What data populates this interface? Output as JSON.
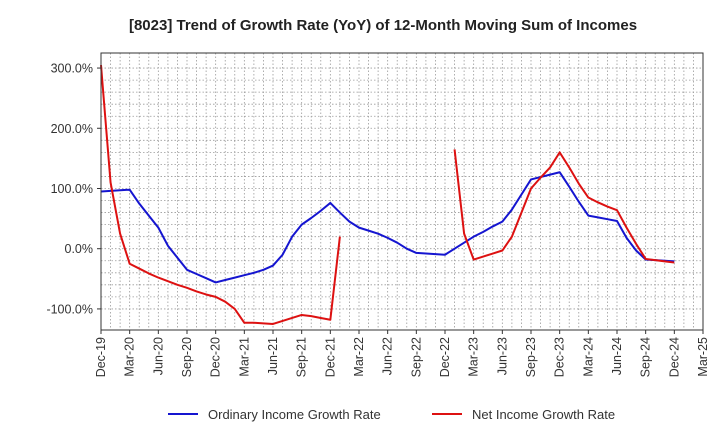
{
  "chart_data": {
    "type": "line",
    "title": "[8023]  Trend of Growth Rate (YoY) of 12-Month Moving Sum of Incomes",
    "xlabel": "",
    "ylabel": "",
    "x_ticks": [
      "Dec-19",
      "Mar-20",
      "Jun-20",
      "Sep-20",
      "Dec-20",
      "Mar-21",
      "Jun-21",
      "Sep-21",
      "Dec-21",
      "Mar-22",
      "Jun-22",
      "Sep-22",
      "Dec-22",
      "Mar-23",
      "Jun-23",
      "Sep-23",
      "Dec-23",
      "Mar-24",
      "Jun-24",
      "Sep-24",
      "Dec-24",
      "Mar-25"
    ],
    "y_ticks": [
      "300.0%",
      "200.0%",
      "100.0%",
      "0.0%",
      "-100.0%"
    ],
    "y_tick_values": [
      300,
      200,
      100,
      0,
      -100
    ],
    "ylim": [
      -135,
      325
    ],
    "grid": true,
    "legend_position": "bottom",
    "series": [
      {
        "name": "Ordinary Income Growth Rate",
        "color": "#1515d0",
        "x": [
          "2019-12",
          "2020-01",
          "2020-02",
          "2020-03",
          "2020-04",
          "2020-05",
          "2020-06",
          "2020-07",
          "2020-08",
          "2020-09",
          "2020-10",
          "2020-11",
          "2020-12",
          "2021-01",
          "2021-02",
          "2021-03",
          "2021-04",
          "2021-05",
          "2021-06",
          "2021-07",
          "2021-08",
          "2021-09",
          "2021-10",
          "2021-11",
          "2021-12",
          "2022-01",
          "2022-02",
          "2022-03",
          "2022-04",
          "2022-05",
          "2022-06",
          "2022-07",
          "2022-08",
          "2022-09",
          "2022-10",
          "2022-11",
          "2022-12",
          "2023-01",
          "2023-02",
          "2023-03",
          "2023-04",
          "2023-05",
          "2023-06",
          "2023-07",
          "2023-08",
          "2023-09",
          "2023-10",
          "2023-11",
          "2023-12",
          "2024-01",
          "2024-02",
          "2024-03",
          "2024-04",
          "2024-05",
          "2024-06",
          "2024-07",
          "2024-08",
          "2024-09",
          "2024-10",
          "2024-11",
          "2024-12"
        ],
        "values": [
          95,
          96,
          97,
          98,
          75,
          55,
          35,
          5,
          -15,
          -35,
          -42,
          -49,
          -56,
          -52,
          -48,
          -44,
          -40,
          -35,
          -28,
          -10,
          20,
          40,
          51,
          63,
          76,
          60,
          45,
          35,
          30,
          25,
          18,
          10,
          0,
          -7,
          -8,
          -9,
          -10,
          0,
          10,
          20,
          28,
          37,
          45,
          65,
          90,
          115,
          119,
          123,
          127,
          103,
          78,
          55,
          52,
          49,
          46,
          18,
          -3,
          -18,
          -19,
          -20,
          -21
        ]
      },
      {
        "name": "Net Income Growth Rate",
        "color": "#dd1111",
        "segments": [
          {
            "x": [
              "2019-12",
              "2020-01",
              "2020-02",
              "2020-03",
              "2020-04",
              "2020-05",
              "2020-06",
              "2020-07",
              "2020-08",
              "2020-09",
              "2020-10",
              "2020-11",
              "2020-12",
              "2021-01",
              "2021-02",
              "2021-03",
              "2021-04",
              "2021-05",
              "2021-06",
              "2021-07",
              "2021-08",
              "2021-09",
              "2021-10",
              "2021-11",
              "2021-12",
              "2022-01"
            ],
            "values": [
              305,
              110,
              25,
              -25,
              -33,
              -41,
              -48,
              -54,
              -60,
              -65,
              -71,
              -76,
              -80,
              -88,
              -100,
              -123,
              -123,
              -124,
              -125,
              -120,
              -115,
              -110,
              -112,
              -115,
              -118,
              20
            ]
          },
          {
            "x": [
              "2023-01",
              "2023-02",
              "2023-03",
              "2023-04",
              "2023-05",
              "2023-06",
              "2023-07",
              "2023-08",
              "2023-09",
              "2023-10",
              "2023-11",
              "2023-12",
              "2024-01",
              "2024-02",
              "2024-03",
              "2024-04",
              "2024-05",
              "2024-06",
              "2024-07",
              "2024-08",
              "2024-09",
              "2024-10",
              "2024-11",
              "2024-12"
            ],
            "values": [
              165,
              25,
              -18,
              -13,
              -8,
              -3,
              20,
              60,
              100,
              118,
              135,
              160,
              135,
              108,
              85,
              77,
              70,
              64,
              35,
              8,
              -17,
              -19,
              -21,
              -23
            ]
          }
        ]
      }
    ]
  }
}
